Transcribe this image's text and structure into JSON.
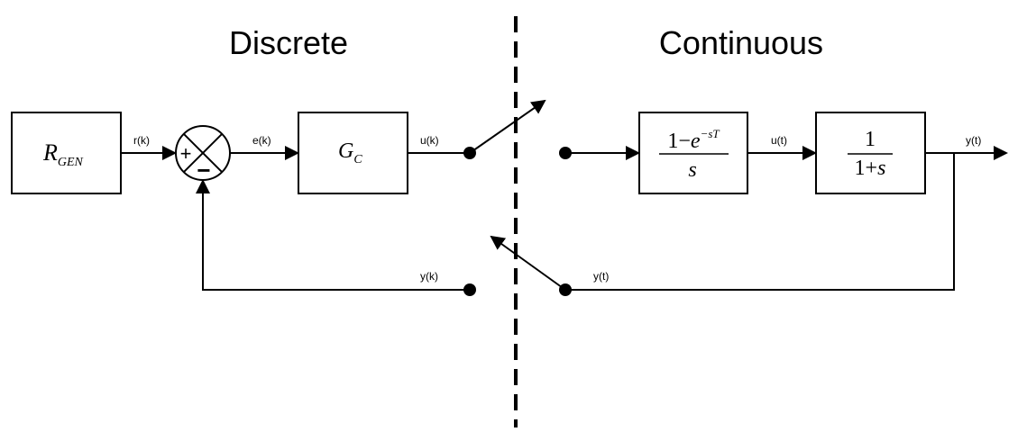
{
  "sections": {
    "discrete": "Discrete",
    "continuous": "Continuous"
  },
  "blocks": {
    "generator": {
      "main": "R",
      "sub": "GEN"
    },
    "controller": {
      "main": "G",
      "sub": "C"
    },
    "zoh": {
      "num_one": "1",
      "num_minus": "−",
      "num_e": "e",
      "num_exp": "−sT",
      "den": "s"
    },
    "plant": {
      "num": "1",
      "den_one": "1",
      "den_plus": "+",
      "den_s": "s"
    }
  },
  "summing_junction": {
    "plus": "+",
    "minus": "−"
  },
  "signals": {
    "r_k": "r(k)",
    "e_k": "e(k)",
    "u_k": "u(k)",
    "u_t": "u(t)",
    "y_t_out": "y(t)",
    "y_t_feedback": "y(t)",
    "y_k": "y(k)"
  }
}
